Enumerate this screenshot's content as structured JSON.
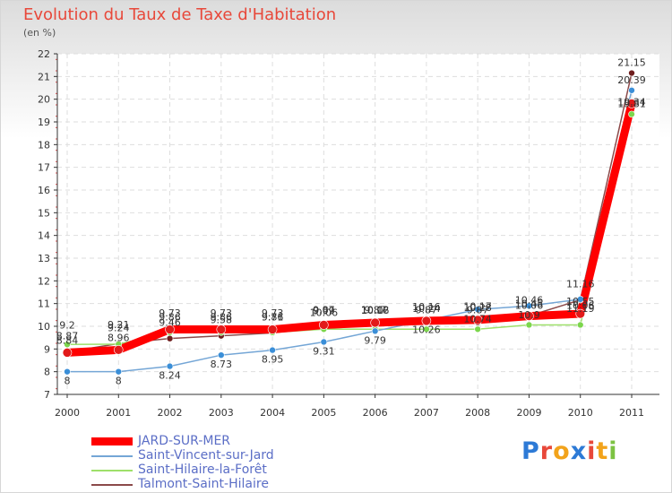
{
  "chart_data": {
    "type": "line",
    "title": "Evolution du Taux de Taxe d'Habitation",
    "ylabel": "(en %)",
    "xlabel": "",
    "ylim": [
      7,
      22
    ],
    "yticks": [
      "7",
      "8",
      "9",
      "10",
      "11",
      "12",
      "13",
      "14",
      "15",
      "16",
      "17",
      "18",
      "19",
      "20",
      "21",
      "22"
    ],
    "categories": [
      "2000",
      "2001",
      "2002",
      "2003",
      "2004",
      "2005",
      "2006",
      "2007",
      "2008",
      "2009",
      "2010",
      "2011"
    ],
    "series": [
      {
        "name": "JARD-SUR-MER",
        "color": "#ff0000",
        "marker_color": "#e21a1a",
        "values": [
          8.84,
          8.96,
          9.86,
          9.86,
          9.86,
          10.06,
          10.16,
          10.24,
          10.28,
          10.45,
          10.55,
          19.81
        ],
        "labels": [
          "8.84",
          "8.96",
          "9.86",
          "9.86",
          "9.86",
          "10.06",
          "10.16",
          "10.24",
          "10.28",
          "10.45",
          "10.55",
          "19.81"
        ]
      },
      {
        "name": "Saint-Vincent-sur-Jard",
        "color": "#74a6d6",
        "marker_color": "#3b8fd8",
        "values": [
          8,
          8,
          8.24,
          8.73,
          8.95,
          9.31,
          9.79,
          10.26,
          10.74,
          10.9,
          11.19,
          20.39
        ],
        "labels": [
          "8",
          "8",
          "8.24",
          "8.73",
          "8.95",
          "9.31",
          "9.79",
          "10.26",
          "10.74",
          "10.9",
          "11.19",
          "20.39"
        ]
      },
      {
        "name": "Saint-Hilaire-la-Forêt",
        "color": "#9ee06a",
        "marker_color": "#7cd64c",
        "values": [
          9.2,
          9.21,
          9.73,
          9.73,
          9.73,
          9.87,
          9.87,
          9.87,
          9.87,
          10.06,
          10.06,
          19.34
        ],
        "labels": [
          "9.2",
          "9.21",
          "9.73",
          "9.73",
          "9.73",
          "9.87",
          "9.87",
          "9.87",
          "9.87",
          "10.06",
          "10.06",
          "19.34"
        ]
      },
      {
        "name": "Talmont-Saint-Hilaire",
        "color": "#8b4a4a",
        "marker_color": "#6e1d1d",
        "values": [
          8.87,
          9.24,
          9.46,
          9.58,
          9.71,
          9.99,
          10.02,
          10.16,
          10.17,
          10.46,
          11.16,
          21.15
        ],
        "labels": [
          "8.87",
          "9.24",
          "9.46",
          "9.58",
          "9.71",
          "9.99",
          "10.02",
          "10.16",
          "10.17",
          "10.46",
          "11.16",
          "21.15"
        ]
      }
    ]
  },
  "page": {
    "title": "Evolution du Taux de Taxe d'Habitation",
    "unit": "(en %)"
  },
  "logo": {
    "text": "Proxiti",
    "letters": [
      "P",
      "r",
      "o",
      "x",
      "i",
      "t",
      "i"
    ],
    "colors": [
      "#2d7ad6",
      "#e8483a",
      "#f2a31b",
      "#2d7ad6",
      "#e8483a",
      "#f2a31b",
      "#7cc242"
    ]
  }
}
